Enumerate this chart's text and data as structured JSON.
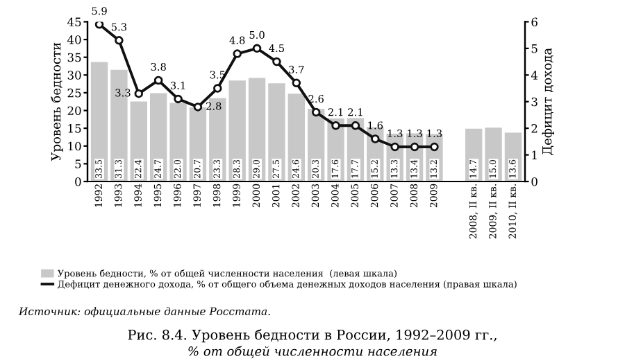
{
  "chart_data": {
    "type": "bar",
    "title": "Рис. 8.4. Уровень бедности в России, 1992–2009 гг.,",
    "subtitle": "% от общей численности населения",
    "ylabel": "Уровень бедности",
    "y2label": "Дефицит дохода",
    "categories": [
      "1992",
      "1993",
      "1994",
      "1995",
      "1996",
      "1997",
      "1998",
      "1999",
      "2000",
      "2001",
      "2002",
      "2003",
      "2004",
      "2005",
      "2006",
      "2007",
      "2008",
      "2009",
      null,
      "2008, II кв.",
      "2009, II кв.",
      "2010, II кв."
    ],
    "series": [
      {
        "name": "Уровень бедности, % от общей численности населения  (левая шкала)",
        "color": "#c8c8c8",
        "values": [
          33.5,
          31.3,
          22.4,
          24.7,
          22.0,
          20.7,
          23.3,
          28.3,
          29.0,
          27.5,
          24.6,
          20.3,
          17.6,
          17.7,
          15.2,
          13.3,
          13.4,
          13.2,
          null,
          14.7,
          15.0,
          13.6
        ],
        "value_labels": [
          "33.5",
          "31.3",
          "22.4",
          "24.7",
          "22.0",
          "20.7",
          "23.3",
          "28.3",
          "29.0",
          "27.5",
          "24.6",
          "20.3",
          "17.6",
          "17.7",
          "15.2",
          "13.3",
          "13.4",
          "13.2",
          null,
          "14.7",
          "15.0",
          "13.6"
        ]
      },
      {
        "name": "Дефицит денежного дохода, % от общего объема денежных доходов населения (правая шкала)",
        "type": "line",
        "axis": "y2",
        "color": "#111111",
        "values": [
          5.9,
          5.3,
          3.3,
          3.8,
          3.1,
          2.8,
          3.5,
          4.8,
          5.0,
          4.5,
          3.7,
          2.6,
          2.1,
          2.1,
          1.6,
          1.3,
          1.3,
          1.3,
          null,
          null,
          null,
          null
        ],
        "value_labels": [
          "5.9",
          "5.3",
          "3.3",
          "3.8",
          "3.1",
          "2.8",
          "3.5",
          "4.8",
          "5.0",
          "4.5",
          "3.7",
          "2.6",
          "2.1",
          "2.1",
          "1.6",
          "1.3",
          "1.3",
          "1.3",
          null,
          null,
          null,
          null
        ]
      }
    ],
    "ylim": [
      0,
      45
    ],
    "yticks": [
      0,
      5,
      10,
      15,
      20,
      25,
      30,
      35,
      40,
      45
    ],
    "y2lim": [
      0,
      6
    ],
    "y2ticks": [
      0,
      1,
      2,
      3,
      4,
      5,
      6
    ],
    "marker": "circle",
    "legend": "bottom",
    "grid": false,
    "annotations": [
      "Источник: официальные данные Росстата."
    ]
  }
}
